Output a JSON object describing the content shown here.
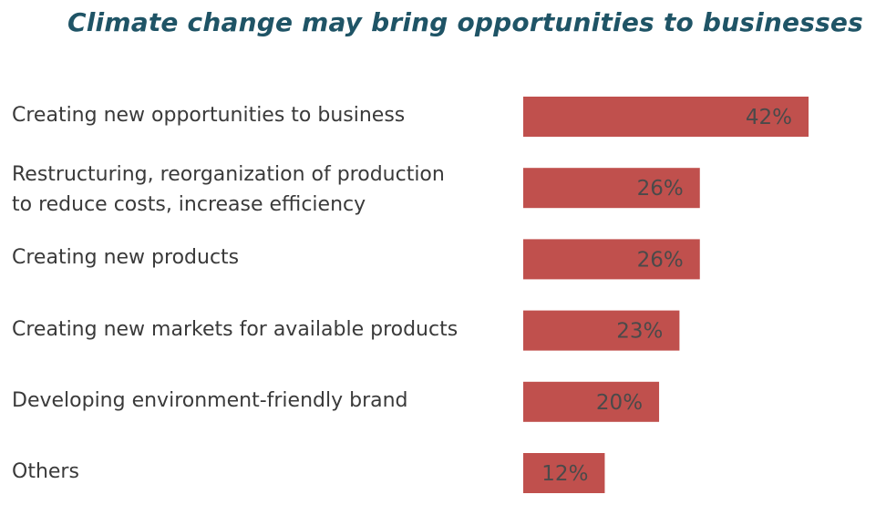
{
  "chart_data": {
    "type": "bar",
    "orientation": "horizontal",
    "title": "Climate change may bring opportunities to businesses",
    "categories": [
      "Creating new opportunities to business",
      "Restructuring, reorganization of production to reduce costs, increase efficiency",
      "Creating new products",
      "Creating new markets for available products",
      "Developing environment-friendly brand",
      "Others"
    ],
    "category_lines": [
      [
        "Creating new opportunities to business"
      ],
      [
        "Restructuring, reorganization of production",
        "to reduce costs, increase efficiency"
      ],
      [
        "Creating new products"
      ],
      [
        "Creating new markets for available products"
      ],
      [
        "Developing environment-friendly brand"
      ],
      [
        "Others"
      ]
    ],
    "values": [
      42,
      26,
      26,
      23,
      20,
      12
    ],
    "value_labels": [
      "42%",
      "26%",
      "26%",
      "23%",
      "20%",
      "12%"
    ],
    "value_unit": "%",
    "bar_color": "#c0504d",
    "grid": false,
    "legend": "none"
  }
}
